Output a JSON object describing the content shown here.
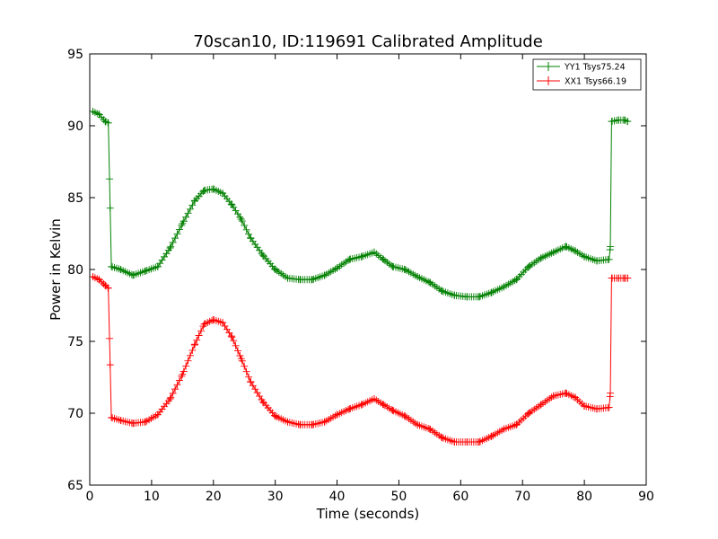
{
  "chart_data": {
    "type": "line",
    "title": "70scan10, ID:119691 Calibrated Amplitude",
    "xlabel": "Time (seconds)",
    "ylabel": "Power in Kelvin",
    "xlim": [
      0,
      90
    ],
    "ylim": [
      65,
      95
    ],
    "xticks": [
      "0",
      "10",
      "20",
      "30",
      "40",
      "50",
      "60",
      "70",
      "80",
      "90"
    ],
    "yticks": [
      "65",
      "70",
      "75",
      "80",
      "85",
      "90",
      "95"
    ],
    "grid": false,
    "legend_position": "top-right",
    "marker": "+",
    "series": [
      {
        "name": "YY1 Tsys75.24",
        "color": "#008000",
        "points": [
          [
            0.5,
            91.0
          ],
          [
            1.5,
            90.8
          ],
          [
            2.5,
            90.3
          ],
          [
            3.0,
            90.2
          ],
          [
            3.2,
            86.3
          ],
          [
            3.5,
            80.2
          ],
          [
            5.0,
            80.0
          ],
          [
            7.0,
            79.6
          ],
          [
            9.0,
            79.9
          ],
          [
            11.0,
            80.2
          ],
          [
            13.0,
            81.5
          ],
          [
            15.0,
            83.2
          ],
          [
            17.0,
            84.8
          ],
          [
            18.5,
            85.5
          ],
          [
            20.0,
            85.6
          ],
          [
            21.5,
            85.3
          ],
          [
            23.0,
            84.5
          ],
          [
            24.5,
            83.5
          ],
          [
            26.0,
            82.2
          ],
          [
            28.0,
            81.0
          ],
          [
            30.0,
            80.0
          ],
          [
            32.0,
            79.4
          ],
          [
            34.0,
            79.3
          ],
          [
            36.0,
            79.3
          ],
          [
            38.0,
            79.6
          ],
          [
            40.0,
            80.1
          ],
          [
            42.0,
            80.7
          ],
          [
            44.0,
            80.9
          ],
          [
            46.0,
            81.2
          ],
          [
            47.5,
            80.7
          ],
          [
            49.0,
            80.2
          ],
          [
            51.0,
            80.0
          ],
          [
            53.0,
            79.5
          ],
          [
            55.0,
            79.1
          ],
          [
            57.0,
            78.5
          ],
          [
            59.0,
            78.2
          ],
          [
            61.0,
            78.1
          ],
          [
            63.0,
            78.1
          ],
          [
            65.0,
            78.4
          ],
          [
            67.0,
            78.8
          ],
          [
            69.0,
            79.3
          ],
          [
            71.0,
            80.2
          ],
          [
            73.0,
            80.8
          ],
          [
            75.0,
            81.2
          ],
          [
            77.0,
            81.6
          ],
          [
            78.5,
            81.3
          ],
          [
            80.0,
            80.9
          ],
          [
            82.0,
            80.6
          ],
          [
            84.0,
            80.7
          ],
          [
            84.2,
            81.6
          ],
          [
            84.4,
            90.3
          ],
          [
            85.5,
            90.4
          ],
          [
            86.5,
            90.4
          ],
          [
            87.0,
            90.3
          ]
        ]
      },
      {
        "name": "XX1 Tsys66.19",
        "color": "#ff0000",
        "points": [
          [
            0.5,
            79.5
          ],
          [
            1.5,
            79.3
          ],
          [
            2.5,
            78.9
          ],
          [
            3.0,
            78.7
          ],
          [
            3.2,
            75.2
          ],
          [
            3.5,
            69.7
          ],
          [
            5.0,
            69.5
          ],
          [
            7.0,
            69.3
          ],
          [
            9.0,
            69.4
          ],
          [
            11.0,
            69.9
          ],
          [
            13.0,
            71.0
          ],
          [
            15.0,
            72.7
          ],
          [
            17.0,
            74.8
          ],
          [
            18.5,
            76.2
          ],
          [
            20.0,
            76.5
          ],
          [
            21.5,
            76.3
          ],
          [
            23.0,
            75.3
          ],
          [
            24.5,
            73.8
          ],
          [
            26.0,
            72.2
          ],
          [
            28.0,
            70.8
          ],
          [
            30.0,
            69.8
          ],
          [
            32.0,
            69.4
          ],
          [
            34.0,
            69.2
          ],
          [
            36.0,
            69.2
          ],
          [
            38.0,
            69.4
          ],
          [
            40.0,
            69.9
          ],
          [
            42.0,
            70.3
          ],
          [
            44.0,
            70.6
          ],
          [
            46.0,
            71.0
          ],
          [
            47.5,
            70.6
          ],
          [
            49.0,
            70.2
          ],
          [
            51.0,
            69.8
          ],
          [
            53.0,
            69.2
          ],
          [
            55.0,
            68.9
          ],
          [
            57.0,
            68.3
          ],
          [
            59.0,
            68.0
          ],
          [
            61.0,
            68.0
          ],
          [
            63.0,
            68.0
          ],
          [
            65.0,
            68.4
          ],
          [
            67.0,
            68.9
          ],
          [
            69.0,
            69.2
          ],
          [
            71.0,
            70.0
          ],
          [
            73.0,
            70.6
          ],
          [
            75.0,
            71.2
          ],
          [
            77.0,
            71.4
          ],
          [
            78.5,
            71.1
          ],
          [
            80.0,
            70.5
          ],
          [
            82.0,
            70.3
          ],
          [
            84.0,
            70.4
          ],
          [
            84.2,
            71.4
          ],
          [
            84.4,
            79.4
          ],
          [
            85.5,
            79.4
          ],
          [
            86.5,
            79.4
          ],
          [
            87.0,
            79.4
          ]
        ]
      }
    ]
  }
}
